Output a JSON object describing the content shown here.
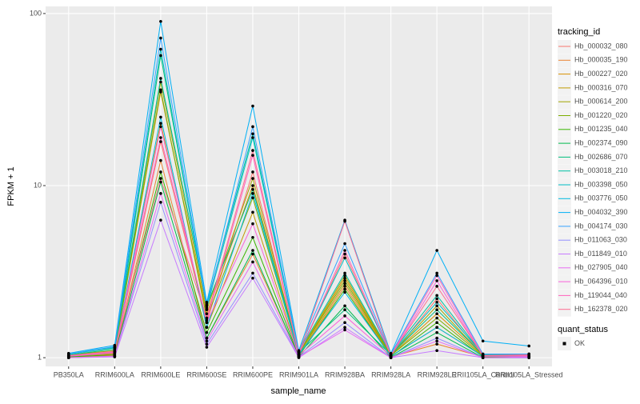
{
  "chart_data": {
    "type": "line",
    "x_label": "sample_name",
    "y_label": "FPKM + 1",
    "categories": [
      "PB350LA",
      "RRIM600LA",
      "RRIM600LE",
      "RRIM600SE",
      "RRIM600PE",
      "RRIM901LA",
      "RRIM928BA",
      "RRIM928LA",
      "RRIM928LE",
      "RRII105LA_Control",
      "RRII105LA_Stressed"
    ],
    "log_y": true,
    "ylim": [
      0.89,
      110
    ],
    "yticks": [
      1,
      10,
      100
    ],
    "grid": true,
    "legend_title": "tracking_id",
    "point_legend_title": "quant_status",
    "point_legend_label": "OK",
    "point_color": "#000000",
    "series": [
      {
        "name": "Hb_000032_080",
        "color": "#F8766D",
        "values": [
          1.02,
          1.05,
          18,
          1.6,
          12,
          1.04,
          4.0,
          1.02,
          2.2,
          1.02,
          1.02
        ]
      },
      {
        "name": "Hb_000035_190",
        "color": "#EA8331",
        "values": [
          1.01,
          1.03,
          14,
          1.3,
          4.0,
          1.02,
          2.6,
          1.01,
          1.2,
          1.01,
          1.03
        ]
      },
      {
        "name": "Hb_000227_020",
        "color": "#D89000",
        "values": [
          1.03,
          1.08,
          35,
          1.8,
          10,
          1.05,
          2.9,
          1.03,
          1.8,
          1.03,
          1.04
        ]
      },
      {
        "name": "Hb_000316_070",
        "color": "#C09B00",
        "values": [
          1.02,
          1.06,
          23,
          1.5,
          7.0,
          1.03,
          2.7,
          1.02,
          1.5,
          1.02,
          1.02
        ]
      },
      {
        "name": "Hb_000614_200",
        "color": "#A3A500",
        "values": [
          1.04,
          1.1,
          40,
          1.9,
          11,
          1.06,
          3.0,
          1.04,
          2.0,
          1.03,
          1.05
        ]
      },
      {
        "name": "Hb_001220_020",
        "color": "#7CAE00",
        "values": [
          1.03,
          1.09,
          36,
          1.7,
          8.5,
          1.05,
          2.8,
          1.03,
          1.7,
          1.02,
          1.03
        ]
      },
      {
        "name": "Hb_001235_040",
        "color": "#39B600",
        "values": [
          1.01,
          1.04,
          12,
          1.4,
          5.0,
          1.02,
          2.5,
          1.01,
          1.6,
          1.01,
          1.01
        ]
      },
      {
        "name": "Hb_002374_090",
        "color": "#00BB4E",
        "values": [
          1.0,
          1.02,
          10.5,
          1.3,
          4.2,
          1.01,
          2.0,
          1.0,
          1.4,
          1.0,
          1.0
        ]
      },
      {
        "name": "Hb_002686_070",
        "color": "#00BF7D",
        "values": [
          1.04,
          1.12,
          57,
          2.0,
          9.5,
          1.07,
          1.9,
          1.04,
          1.9,
          1.04,
          1.04
        ]
      },
      {
        "name": "Hb_003018_210",
        "color": "#00C1A3",
        "values": [
          1.05,
          1.14,
          42,
          2.05,
          20,
          1.08,
          3.1,
          1.05,
          2.3,
          1.04,
          1.05
        ]
      },
      {
        "name": "Hb_003398_050",
        "color": "#00BFC4",
        "values": [
          1.05,
          1.15,
          62,
          1.95,
          19,
          1.08,
          3.8,
          1.05,
          2.1,
          1.05,
          1.05
        ]
      },
      {
        "name": "Hb_003776_050",
        "color": "#00BAE0",
        "values": [
          1.02,
          1.07,
          25,
          1.5,
          9.0,
          1.04,
          2.4,
          1.02,
          1.5,
          1.02,
          1.02
        ]
      },
      {
        "name": "Hb_004032_390",
        "color": "#00B0F6",
        "values": [
          1.06,
          1.18,
          90,
          2.1,
          29,
          1.1,
          6.3,
          1.06,
          4.2,
          1.25,
          1.17
        ]
      },
      {
        "name": "Hb_004174_030",
        "color": "#35A2FF",
        "values": [
          1.05,
          1.16,
          72,
          2.0,
          22,
          1.09,
          4.6,
          1.05,
          3.1,
          1.05,
          1.05
        ]
      },
      {
        "name": "Hb_011063_030",
        "color": "#9590FF",
        "values": [
          1.0,
          1.02,
          8,
          1.2,
          3.1,
          1.01,
          1.6,
          1.0,
          1.3,
          1.0,
          1.0
        ]
      },
      {
        "name": "Hb_011849_010",
        "color": "#C77CFF",
        "values": [
          1.0,
          1.01,
          6.3,
          1.15,
          2.9,
          1.0,
          1.5,
          1.0,
          1.1,
          1.0,
          1.0
        ]
      },
      {
        "name": "Hb_027905_040",
        "color": "#E76BF3",
        "values": [
          1.0,
          1.02,
          9,
          1.25,
          3.6,
          1.01,
          1.45,
          1.0,
          1.25,
          1.0,
          1.01
        ]
      },
      {
        "name": "Hb_064396_010",
        "color": "#FA62DB",
        "values": [
          1.02,
          1.07,
          22,
          1.6,
          6.0,
          1.03,
          1.75,
          1.02,
          2.8,
          1.02,
          1.02
        ]
      },
      {
        "name": "Hb_119044_040",
        "color": "#FF62BC",
        "values": [
          1.03,
          1.08,
          19,
          1.65,
          15,
          1.04,
          4.2,
          1.03,
          3.0,
          1.03,
          1.03
        ]
      },
      {
        "name": "Hb_162378_020",
        "color": "#FF6C91",
        "values": [
          1.03,
          1.09,
          11,
          1.7,
          16,
          1.05,
          6.2,
          1.03,
          2.6,
          1.03,
          1.04
        ]
      }
    ]
  }
}
